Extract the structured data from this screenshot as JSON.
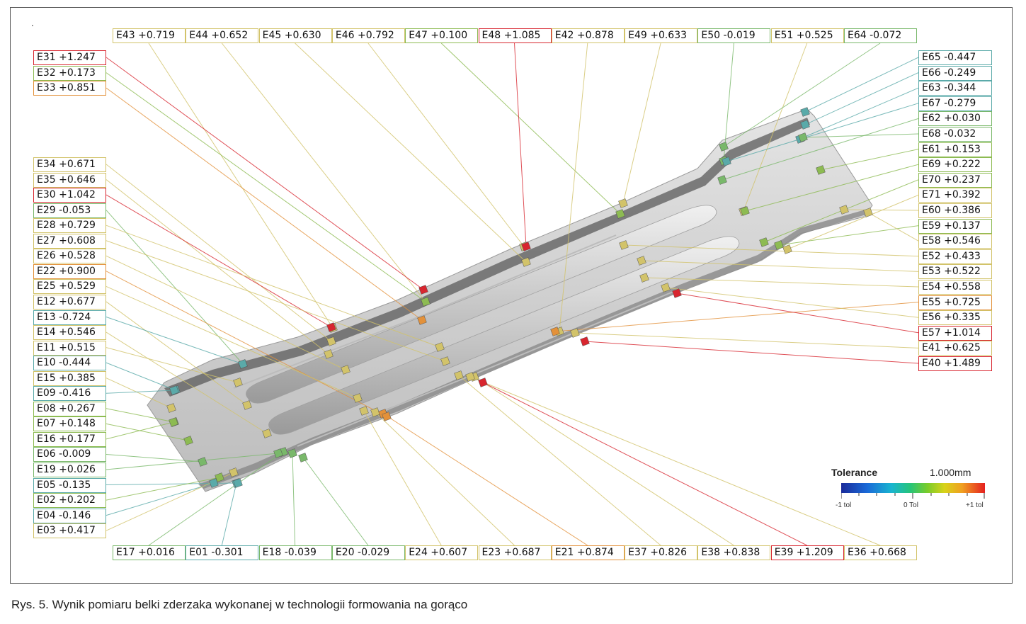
{
  "caption": "Rys. 5. Wynik pomiaru belki zderzaka wykonanej w technologii formowania na gorąco",
  "figure_dot": ".",
  "legend": {
    "title": "Tolerance",
    "range": "1.000mm",
    "tick_min": "-1 tol",
    "tick_mid": "0 Tol",
    "tick_max": "+1 tol"
  },
  "status_colors": {
    "red": "#d8262f",
    "orange": "#e3913a",
    "yellow": "#d2c36a",
    "green": "#8dbb52",
    "lightgreen": "#79b86a",
    "cyan": "#5aaaa9"
  },
  "labels_top": [
    {
      "id": "E43",
      "value": "+0.719",
      "color": "yellow"
    },
    {
      "id": "E44",
      "value": "+0.652",
      "color": "yellow"
    },
    {
      "id": "E45",
      "value": "+0.630",
      "color": "yellow"
    },
    {
      "id": "E46",
      "value": "+0.792",
      "color": "yellow"
    },
    {
      "id": "E47",
      "value": "+0.100",
      "color": "green"
    },
    {
      "id": "E48",
      "value": "+1.085",
      "color": "red"
    },
    {
      "id": "E42",
      "value": "+0.878",
      "color": "yellow"
    },
    {
      "id": "E49",
      "value": "+0.633",
      "color": "yellow"
    },
    {
      "id": "E50",
      "value": "-0.019",
      "color": "lightgreen"
    },
    {
      "id": "E51",
      "value": "+0.525",
      "color": "yellow"
    },
    {
      "id": "E64",
      "value": "-0.072",
      "color": "lightgreen"
    }
  ],
  "labels_left_top": [
    {
      "id": "E31",
      "value": "+1.247",
      "color": "red"
    },
    {
      "id": "E32",
      "value": "+0.173",
      "color": "green"
    },
    {
      "id": "E33",
      "value": "+0.851",
      "color": "orange"
    }
  ],
  "labels_left": [
    {
      "id": "E34",
      "value": "+0.671",
      "color": "yellow"
    },
    {
      "id": "E35",
      "value": "+0.646",
      "color": "yellow"
    },
    {
      "id": "E30",
      "value": "+1.042",
      "color": "red"
    },
    {
      "id": "E29",
      "value": "-0.053",
      "color": "lightgreen"
    },
    {
      "id": "E28",
      "value": "+0.729",
      "color": "yellow"
    },
    {
      "id": "E27",
      "value": "+0.608",
      "color": "yellow"
    },
    {
      "id": "E26",
      "value": "+0.528",
      "color": "yellow"
    },
    {
      "id": "E22",
      "value": "+0.900",
      "color": "orange"
    },
    {
      "id": "E25",
      "value": "+0.529",
      "color": "yellow"
    },
    {
      "id": "E12",
      "value": "+0.677",
      "color": "yellow"
    },
    {
      "id": "E13",
      "value": "-0.724",
      "color": "cyan"
    },
    {
      "id": "E14",
      "value": "+0.546",
      "color": "yellow"
    },
    {
      "id": "E11",
      "value": "+0.515",
      "color": "yellow"
    },
    {
      "id": "E10",
      "value": "-0.444",
      "color": "cyan"
    },
    {
      "id": "E15",
      "value": "+0.385",
      "color": "yellow"
    },
    {
      "id": "E09",
      "value": "-0.416",
      "color": "cyan"
    },
    {
      "id": "E08",
      "value": "+0.267",
      "color": "green"
    },
    {
      "id": "E07",
      "value": "+0.148",
      "color": "green"
    },
    {
      "id": "E16",
      "value": "+0.177",
      "color": "green"
    },
    {
      "id": "E06",
      "value": "-0.009",
      "color": "lightgreen"
    },
    {
      "id": "E19",
      "value": "+0.026",
      "color": "lightgreen"
    },
    {
      "id": "E05",
      "value": "-0.135",
      "color": "cyan"
    },
    {
      "id": "E02",
      "value": "+0.202",
      "color": "green"
    },
    {
      "id": "E04",
      "value": "-0.146",
      "color": "cyan"
    },
    {
      "id": "E03",
      "value": "+0.417",
      "color": "yellow"
    }
  ],
  "labels_right": [
    {
      "id": "E65",
      "value": "-0.447",
      "color": "cyan"
    },
    {
      "id": "E66",
      "value": "-0.249",
      "color": "cyan"
    },
    {
      "id": "E63",
      "value": "-0.344",
      "color": "cyan"
    },
    {
      "id": "E67",
      "value": "-0.279",
      "color": "cyan"
    },
    {
      "id": "E62",
      "value": "+0.030",
      "color": "lightgreen"
    },
    {
      "id": "E68",
      "value": "-0.032",
      "color": "lightgreen"
    },
    {
      "id": "E61",
      "value": "+0.153",
      "color": "green"
    },
    {
      "id": "E69",
      "value": "+0.222",
      "color": "green"
    },
    {
      "id": "E70",
      "value": "+0.237",
      "color": "green"
    },
    {
      "id": "E71",
      "value": "+0.392",
      "color": "yellow"
    },
    {
      "id": "E60",
      "value": "+0.386",
      "color": "yellow"
    },
    {
      "id": "E59",
      "value": "+0.137",
      "color": "green"
    },
    {
      "id": "E58",
      "value": "+0.546",
      "color": "yellow"
    },
    {
      "id": "E52",
      "value": "+0.433",
      "color": "yellow"
    },
    {
      "id": "E53",
      "value": "+0.522",
      "color": "yellow"
    },
    {
      "id": "E54",
      "value": "+0.558",
      "color": "yellow"
    },
    {
      "id": "E55",
      "value": "+0.725",
      "color": "orange"
    },
    {
      "id": "E56",
      "value": "+0.335",
      "color": "yellow"
    },
    {
      "id": "E57",
      "value": "+1.014",
      "color": "red"
    },
    {
      "id": "E41",
      "value": "+0.625",
      "color": "yellow"
    },
    {
      "id": "E40",
      "value": "+1.489",
      "color": "red"
    }
  ],
  "labels_bottom": [
    {
      "id": "E17",
      "value": "+0.016",
      "color": "lightgreen"
    },
    {
      "id": "E01",
      "value": "-0.301",
      "color": "cyan"
    },
    {
      "id": "E18",
      "value": "-0.039",
      "color": "lightgreen"
    },
    {
      "id": "E20",
      "value": "-0.029",
      "color": "lightgreen"
    },
    {
      "id": "E24",
      "value": "+0.607",
      "color": "yellow"
    },
    {
      "id": "E23",
      "value": "+0.687",
      "color": "yellow"
    },
    {
      "id": "E21",
      "value": "+0.874",
      "color": "orange"
    },
    {
      "id": "E37",
      "value": "+0.826",
      "color": "yellow"
    },
    {
      "id": "E38",
      "value": "+0.838",
      "color": "yellow"
    },
    {
      "id": "E39",
      "value": "+1.209",
      "color": "red"
    },
    {
      "id": "E36",
      "value": "+0.668",
      "color": "yellow"
    }
  ]
}
